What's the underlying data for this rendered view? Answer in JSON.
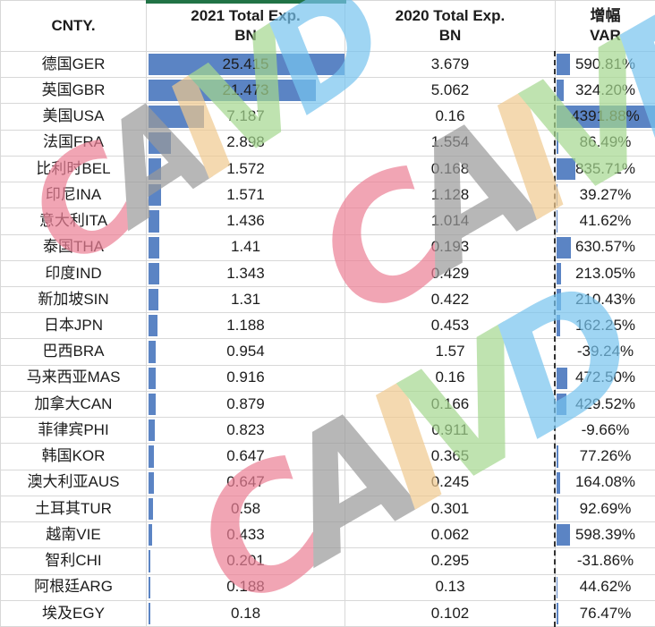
{
  "table": {
    "columns": [
      {
        "id": "country",
        "header_lines": [
          "CNTY.",
          ""
        ]
      },
      {
        "id": "exp2021",
        "header_lines": [
          "2021 Total Exp.",
          "BN"
        ]
      },
      {
        "id": "exp2020",
        "header_lines": [
          "2020 Total Exp.",
          "BN"
        ]
      },
      {
        "id": "var",
        "header_lines": [
          "增幅",
          "VAR"
        ]
      }
    ],
    "rows": [
      {
        "country": "德国GER",
        "exp2021": "25.415",
        "exp2020": "3.679",
        "var": "590.81%"
      },
      {
        "country": "英国GBR",
        "exp2021": "21.473",
        "exp2020": "5.062",
        "var": "324.20%"
      },
      {
        "country": "美国USA",
        "exp2021": "7.187",
        "exp2020": "0.16",
        "var": "4391.88%"
      },
      {
        "country": "法国FRA",
        "exp2021": "2.898",
        "exp2020": "1.554",
        "var": "86.49%"
      },
      {
        "country": "比利时BEL",
        "exp2021": "1.572",
        "exp2020": "0.168",
        "var": "835.71%"
      },
      {
        "country": "印尼INA",
        "exp2021": "1.571",
        "exp2020": "1.128",
        "var": "39.27%"
      },
      {
        "country": "意大利ITA",
        "exp2021": "1.436",
        "exp2020": "1.014",
        "var": "41.62%"
      },
      {
        "country": "泰国THA",
        "exp2021": "1.41",
        "exp2020": "0.193",
        "var": "630.57%"
      },
      {
        "country": "印度IND",
        "exp2021": "1.343",
        "exp2020": "0.429",
        "var": "213.05%"
      },
      {
        "country": "新加坡SIN",
        "exp2021": "1.31",
        "exp2020": "0.422",
        "var": "210.43%"
      },
      {
        "country": "日本JPN",
        "exp2021": "1.188",
        "exp2020": "0.453",
        "var": "162.25%"
      },
      {
        "country": "巴西BRA",
        "exp2021": "0.954",
        "exp2020": "1.57",
        "var": "-39.24%"
      },
      {
        "country": "马来西亚MAS",
        "exp2021": "0.916",
        "exp2020": "0.16",
        "var": "472.50%"
      },
      {
        "country": "加拿大CAN",
        "exp2021": "0.879",
        "exp2020": "0.166",
        "var": "429.52%"
      },
      {
        "country": "菲律宾PHI",
        "exp2021": "0.823",
        "exp2020": "0.911",
        "var": "-9.66%"
      },
      {
        "country": "韩国KOR",
        "exp2021": "0.647",
        "exp2020": "0.365",
        "var": "77.26%"
      },
      {
        "country": "澳大利亚AUS",
        "exp2021": "0.647",
        "exp2020": "0.245",
        "var": "164.08%"
      },
      {
        "country": "土耳其TUR",
        "exp2021": "0.58",
        "exp2020": "0.301",
        "var": "92.69%"
      },
      {
        "country": "越南VIE",
        "exp2021": "0.433",
        "exp2020": "0.062",
        "var": "598.39%"
      },
      {
        "country": "智利CHI",
        "exp2021": "0.201",
        "exp2020": "0.295",
        "var": "-31.86%"
      },
      {
        "country": "阿根廷ARG",
        "exp2021": "0.188",
        "exp2020": "0.13",
        "var": "44.62%"
      },
      {
        "country": "埃及EGY",
        "exp2021": "0.18",
        "exp2020": "0.102",
        "var": "76.47%"
      }
    ],
    "databar": {
      "exp2021_max": 25.415,
      "var_max": 4391.88,
      "color": "#5b84c4"
    }
  },
  "watermark": {
    "text": "CAIVD",
    "letter_colors": [
      "#ec7f95",
      "#9a9a9a",
      "#f0c98f",
      "#a5d88f",
      "#77c4ef"
    ]
  },
  "colors": {
    "selection_border_green": "#217346",
    "gridline": "#d8d8d8",
    "marquee_dash": "#303030",
    "databar_blue": "#5b84c4"
  }
}
